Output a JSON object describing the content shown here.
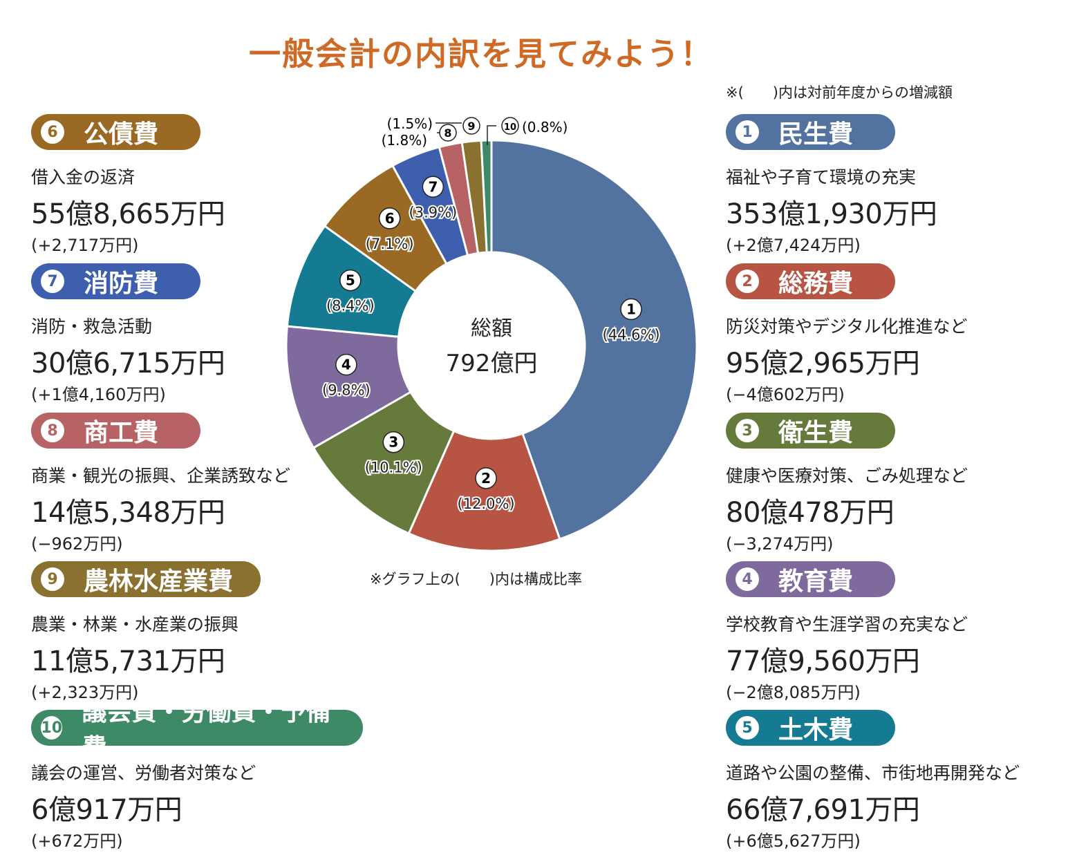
{
  "title": "一般会計の内訳を見てみよう！",
  "note_top": "※(　　)内は対前年度からの増減額",
  "note_chart": "※グラフ上の(　　)内は構成比率",
  "center": {
    "label": "総額",
    "total": "792億円"
  },
  "chart_data": {
    "type": "pie",
    "title": "一般会計の内訳",
    "total_label": "総額 792億円",
    "categories": [
      "民生費",
      "総務費",
      "衛生費",
      "教育費",
      "土木費",
      "公債費",
      "消防費",
      "商工費",
      "農林水産業費",
      "議会費・労働費・予備費"
    ],
    "values": [
      44.6,
      12.0,
      10.1,
      9.8,
      8.4,
      7.1,
      3.9,
      1.8,
      1.5,
      0.8
    ],
    "value_labels": [
      "(44.6%)",
      "(12.0%)",
      "(10.1%)",
      "(9.8%)",
      "(8.4%)",
      "(7.1%)",
      "(3.9%)",
      "(1.8%)",
      "(1.5%)",
      "(0.8%)"
    ],
    "markers": [
      "①",
      "②",
      "③",
      "④",
      "⑤",
      "⑥",
      "⑦",
      "⑧",
      "⑨",
      "⑩"
    ],
    "colors": [
      "#52739f",
      "#b85443",
      "#667a3c",
      "#7e6a9d",
      "#157b93",
      "#9a6a24",
      "#3d5fad",
      "#b76264",
      "#8a7130",
      "#3e8a67"
    ]
  },
  "items": [
    {
      "no": "1",
      "name": "民生費",
      "desc": "福祉や子育て環境の充実",
      "amount": "353億1,930万円",
      "change": "(+2億7,424万円)"
    },
    {
      "no": "2",
      "name": "総務費",
      "desc": "防災対策やデジタル化推進など",
      "amount": "95億2,965万円",
      "change": "(−4億602万円)"
    },
    {
      "no": "3",
      "name": "衛生費",
      "desc": "健康や医療対策、ごみ処理など",
      "amount": "80億478万円",
      "change": "(−3,274万円)"
    },
    {
      "no": "4",
      "name": "教育費",
      "desc": "学校教育や生涯学習の充実など",
      "amount": "77億9,560万円",
      "change": "(−2億8,085万円)"
    },
    {
      "no": "5",
      "name": "土木費",
      "desc": "道路や公園の整備、市街地再開発など",
      "amount": "66億7,691万円",
      "change": "(+6億5,627万円)"
    },
    {
      "no": "6",
      "name": "公債費",
      "desc": "借入金の返済",
      "amount": "55億8,665万円",
      "change": "(+2,717万円)"
    },
    {
      "no": "7",
      "name": "消防費",
      "desc": "消防・救急活動",
      "amount": "30億6,715万円",
      "change": "(+1億4,160万円)"
    },
    {
      "no": "8",
      "name": "商工費",
      "desc": "商業・観光の振興、企業誘致など",
      "amount": "14億5,348万円",
      "change": "(−962万円)"
    },
    {
      "no": "9",
      "name": "農林水産業費",
      "desc": "農業・林業・水産業の振興",
      "amount": "11億5,731万円",
      "change": "(+2,323万円)"
    },
    {
      "no": "10",
      "name": "議会費・労働費・予備費",
      "desc": "議会の運営、労働者対策など",
      "amount": "6億917万円",
      "change": "(+672万円)"
    }
  ]
}
